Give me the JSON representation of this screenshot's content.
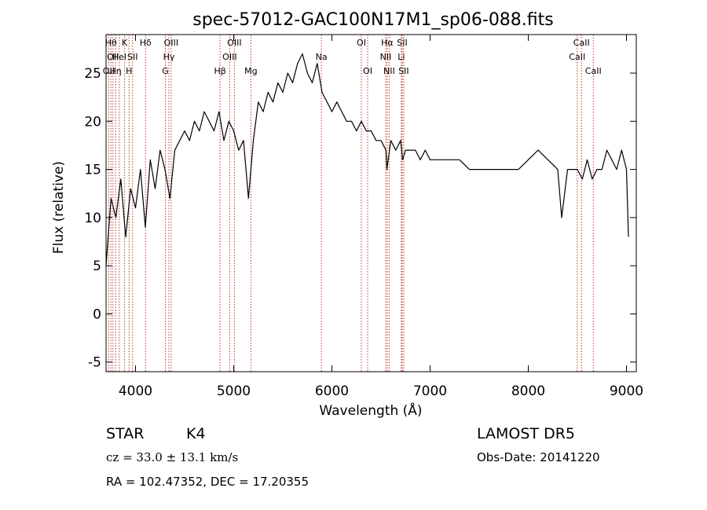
{
  "chart_data": {
    "type": "line",
    "title": "spec-57012-GAC100N17M1_sp06-088.fits",
    "xlabel": "Wavelength (Å)",
    "ylabel": "Flux (relative)",
    "xlim": [
      3700,
      9100
    ],
    "ylim": [
      -6,
      29
    ],
    "xticks": [
      4000,
      5000,
      6000,
      7000,
      8000,
      9000
    ],
    "yticks": [
      -5,
      0,
      5,
      10,
      15,
      20,
      25
    ],
    "grid": false,
    "series": [
      {
        "x": [
          3700,
          3750,
          3800,
          3850,
          3900,
          3950,
          4000,
          4050,
          4100,
          4150,
          4200,
          4250,
          4300,
          4350,
          4400,
          4450,
          4500,
          4550,
          4600,
          4650,
          4700,
          4750,
          4800,
          4850,
          4900,
          4950,
          5000,
          5050,
          5100,
          5150,
          5200,
          5250,
          5300,
          5350,
          5400,
          5450,
          5500,
          5550,
          5600,
          5650,
          5700,
          5750,
          5800,
          5850,
          5900,
          5950,
          6000,
          6050,
          6100,
          6150,
          6200,
          6250,
          6300,
          6350,
          6400,
          6450,
          6500,
          6550,
          6560,
          6600,
          6650,
          6700,
          6720,
          6750,
          6800,
          6850,
          6900,
          6950,
          7000,
          7100,
          7200,
          7300,
          7400,
          7500,
          7600,
          7700,
          7800,
          7900,
          8000,
          8100,
          8200,
          8300,
          8340,
          8400,
          8450,
          8500,
          8550,
          8600,
          8650,
          8700,
          8750,
          8800,
          8850,
          8900,
          8950,
          9000,
          9020
        ],
        "y": [
          5,
          12,
          10,
          14,
          8,
          13,
          11,
          15,
          9,
          16,
          13,
          17,
          15,
          12,
          17,
          18,
          19,
          18,
          20,
          19,
          21,
          20,
          19,
          21,
          18,
          20,
          19,
          17,
          18,
          12,
          18,
          22,
          21,
          23,
          22,
          24,
          23,
          25,
          24,
          26,
          27,
          25,
          24,
          26,
          23,
          22,
          21,
          22,
          21,
          20,
          20,
          19,
          20,
          19,
          19,
          18,
          18,
          17,
          15,
          18,
          17,
          18,
          16,
          17,
          17,
          17,
          16,
          17,
          16,
          16,
          16,
          16,
          15,
          15,
          15,
          15,
          15,
          15,
          16,
          17,
          16,
          15,
          10,
          15,
          15,
          15,
          14,
          16,
          14,
          15,
          15,
          17,
          16,
          15,
          17,
          15,
          8
        ]
      }
    ],
    "lines": [
      {
        "x": 3727,
        "labels": [
          "OII"
        ],
        "rows": [
          3
        ]
      },
      {
        "x": 3750,
        "labels": [
          "Hθ"
        ],
        "rows": [
          1
        ]
      },
      {
        "x": 3770,
        "labels": [
          "OII"
        ],
        "rows": [
          2
        ]
      },
      {
        "x": 3797,
        "labels": [
          "Hη"
        ],
        "rows": [
          3
        ]
      },
      {
        "x": 3835,
        "labels": [
          "Hel"
        ],
        "rows": [
          2
        ]
      },
      {
        "x": 3889,
        "labels": [
          "K"
        ],
        "rows": [
          1
        ]
      },
      {
        "x": 3934,
        "labels": [
          "H"
        ],
        "rows": [
          3
        ]
      },
      {
        "x": 3970,
        "labels": [
          "SII"
        ],
        "rows": [
          2
        ]
      },
      {
        "x": 4102,
        "labels": [
          "Hδ"
        ],
        "rows": [
          1
        ]
      },
      {
        "x": 4304,
        "labels": [
          "G"
        ],
        "rows": [
          3
        ]
      },
      {
        "x": 4340,
        "labels": [
          "Hγ"
        ],
        "rows": [
          2
        ]
      },
      {
        "x": 4363,
        "labels": [
          "OIII"
        ],
        "rows": [
          1
        ]
      },
      {
        "x": 4861,
        "labels": [
          "Hβ"
        ],
        "rows": [
          3
        ]
      },
      {
        "x": 4959,
        "labels": [
          "OIII"
        ],
        "rows": [
          2
        ]
      },
      {
        "x": 5007,
        "labels": [
          "OIII"
        ],
        "rows": [
          1
        ]
      },
      {
        "x": 5175,
        "labels": [
          "Mg"
        ],
        "rows": [
          3
        ]
      },
      {
        "x": 5893,
        "labels": [
          "Na"
        ],
        "rows": [
          2
        ]
      },
      {
        "x": 6300,
        "labels": [
          "OI"
        ],
        "rows": [
          1
        ]
      },
      {
        "x": 6364,
        "labels": [
          "OI"
        ],
        "rows": [
          3
        ]
      },
      {
        "x": 6548,
        "labels": [
          "NII"
        ],
        "rows": [
          2
        ]
      },
      {
        "x": 6563,
        "labels": [
          "Hα"
        ],
        "rows": [
          1
        ]
      },
      {
        "x": 6583,
        "labels": [
          "NII"
        ],
        "rows": [
          3
        ]
      },
      {
        "x": 6707,
        "labels": [
          "Li"
        ],
        "rows": [
          2
        ]
      },
      {
        "x": 6716,
        "labels": [
          "SII"
        ],
        "rows": [
          1
        ]
      },
      {
        "x": 6731,
        "labels": [
          "SII"
        ],
        "rows": [
          3
        ]
      },
      {
        "x": 8498,
        "labels": [
          "CaII"
        ],
        "rows": [
          2
        ]
      },
      {
        "x": 8542,
        "labels": [
          "CaII"
        ],
        "rows": [
          1
        ]
      },
      {
        "x": 8662,
        "labels": [
          "CaII"
        ],
        "rows": [
          3
        ]
      }
    ]
  },
  "info": {
    "class_label": "STAR",
    "subclass_label": "K4",
    "survey": "LAMOST DR5",
    "cz_text": "cz = 33.0 ± 13.1 km/s",
    "obs_date": "Obs-Date: 20141220",
    "coords": "RA = 102.47352, DEC =  17.20355"
  },
  "colors": {
    "spectrum": "#000000",
    "line_markers": "#c0392b",
    "axes": "#000000"
  }
}
